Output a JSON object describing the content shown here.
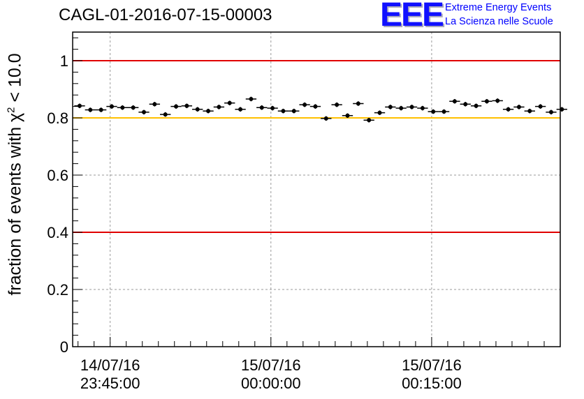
{
  "title": "CAGL-01-2016-07-15-00003",
  "logo": {
    "mark": "EEE",
    "line1": "Extreme Energy Events",
    "line2": "La Scienza nelle Scuole",
    "color": "#0000ff"
  },
  "chart_data": {
    "type": "scatter",
    "ylabel_prefix": "fraction of events with χ",
    "ylabel_sup": "2",
    "ylabel_suffix": " < 10.0",
    "ylim": [
      0,
      1.1
    ],
    "yticks": [
      0,
      0.2,
      0.4,
      0.6,
      0.8,
      1
    ],
    "ytick_labels": [
      "0",
      "0.2",
      "0.4",
      "0.6",
      "0.8",
      "1"
    ],
    "xlim_minutes": [
      -52,
      39
    ],
    "xticks": [
      {
        "minute": -45,
        "line1": "14/07/16",
        "line2": "23:45:00"
      },
      {
        "minute": -15,
        "line1": "15/07/16",
        "line2": "00:00:00"
      },
      {
        "minute": 15,
        "line1": "15/07/16",
        "line2": "00:15:00"
      }
    ],
    "grid": true,
    "reference_lines": [
      {
        "y": 1.0,
        "color": "#e00000"
      },
      {
        "y": 0.8,
        "color": "#ffc000"
      },
      {
        "y": 0.4,
        "color": "#e00000"
      }
    ],
    "marker_color": "#000000",
    "series": [
      {
        "x_start_minute": -50.7,
        "x_step_minute": 2,
        "bin_halfwidth_minute": 1,
        "y_err": 0.008,
        "values": [
          0.842,
          0.828,
          0.828,
          0.84,
          0.836,
          0.836,
          0.82,
          0.848,
          0.812,
          0.84,
          0.842,
          0.83,
          0.824,
          0.838,
          0.852,
          0.83,
          0.866,
          0.836,
          0.834,
          0.824,
          0.824,
          0.846,
          0.84,
          0.798,
          0.846,
          0.808,
          0.85,
          0.792,
          0.818,
          0.838,
          0.834,
          0.838,
          0.834,
          0.822,
          0.822,
          0.858,
          0.848,
          0.842,
          0.858,
          0.86,
          0.83,
          0.838,
          0.824,
          0.84,
          0.82,
          0.83
        ]
      }
    ]
  }
}
